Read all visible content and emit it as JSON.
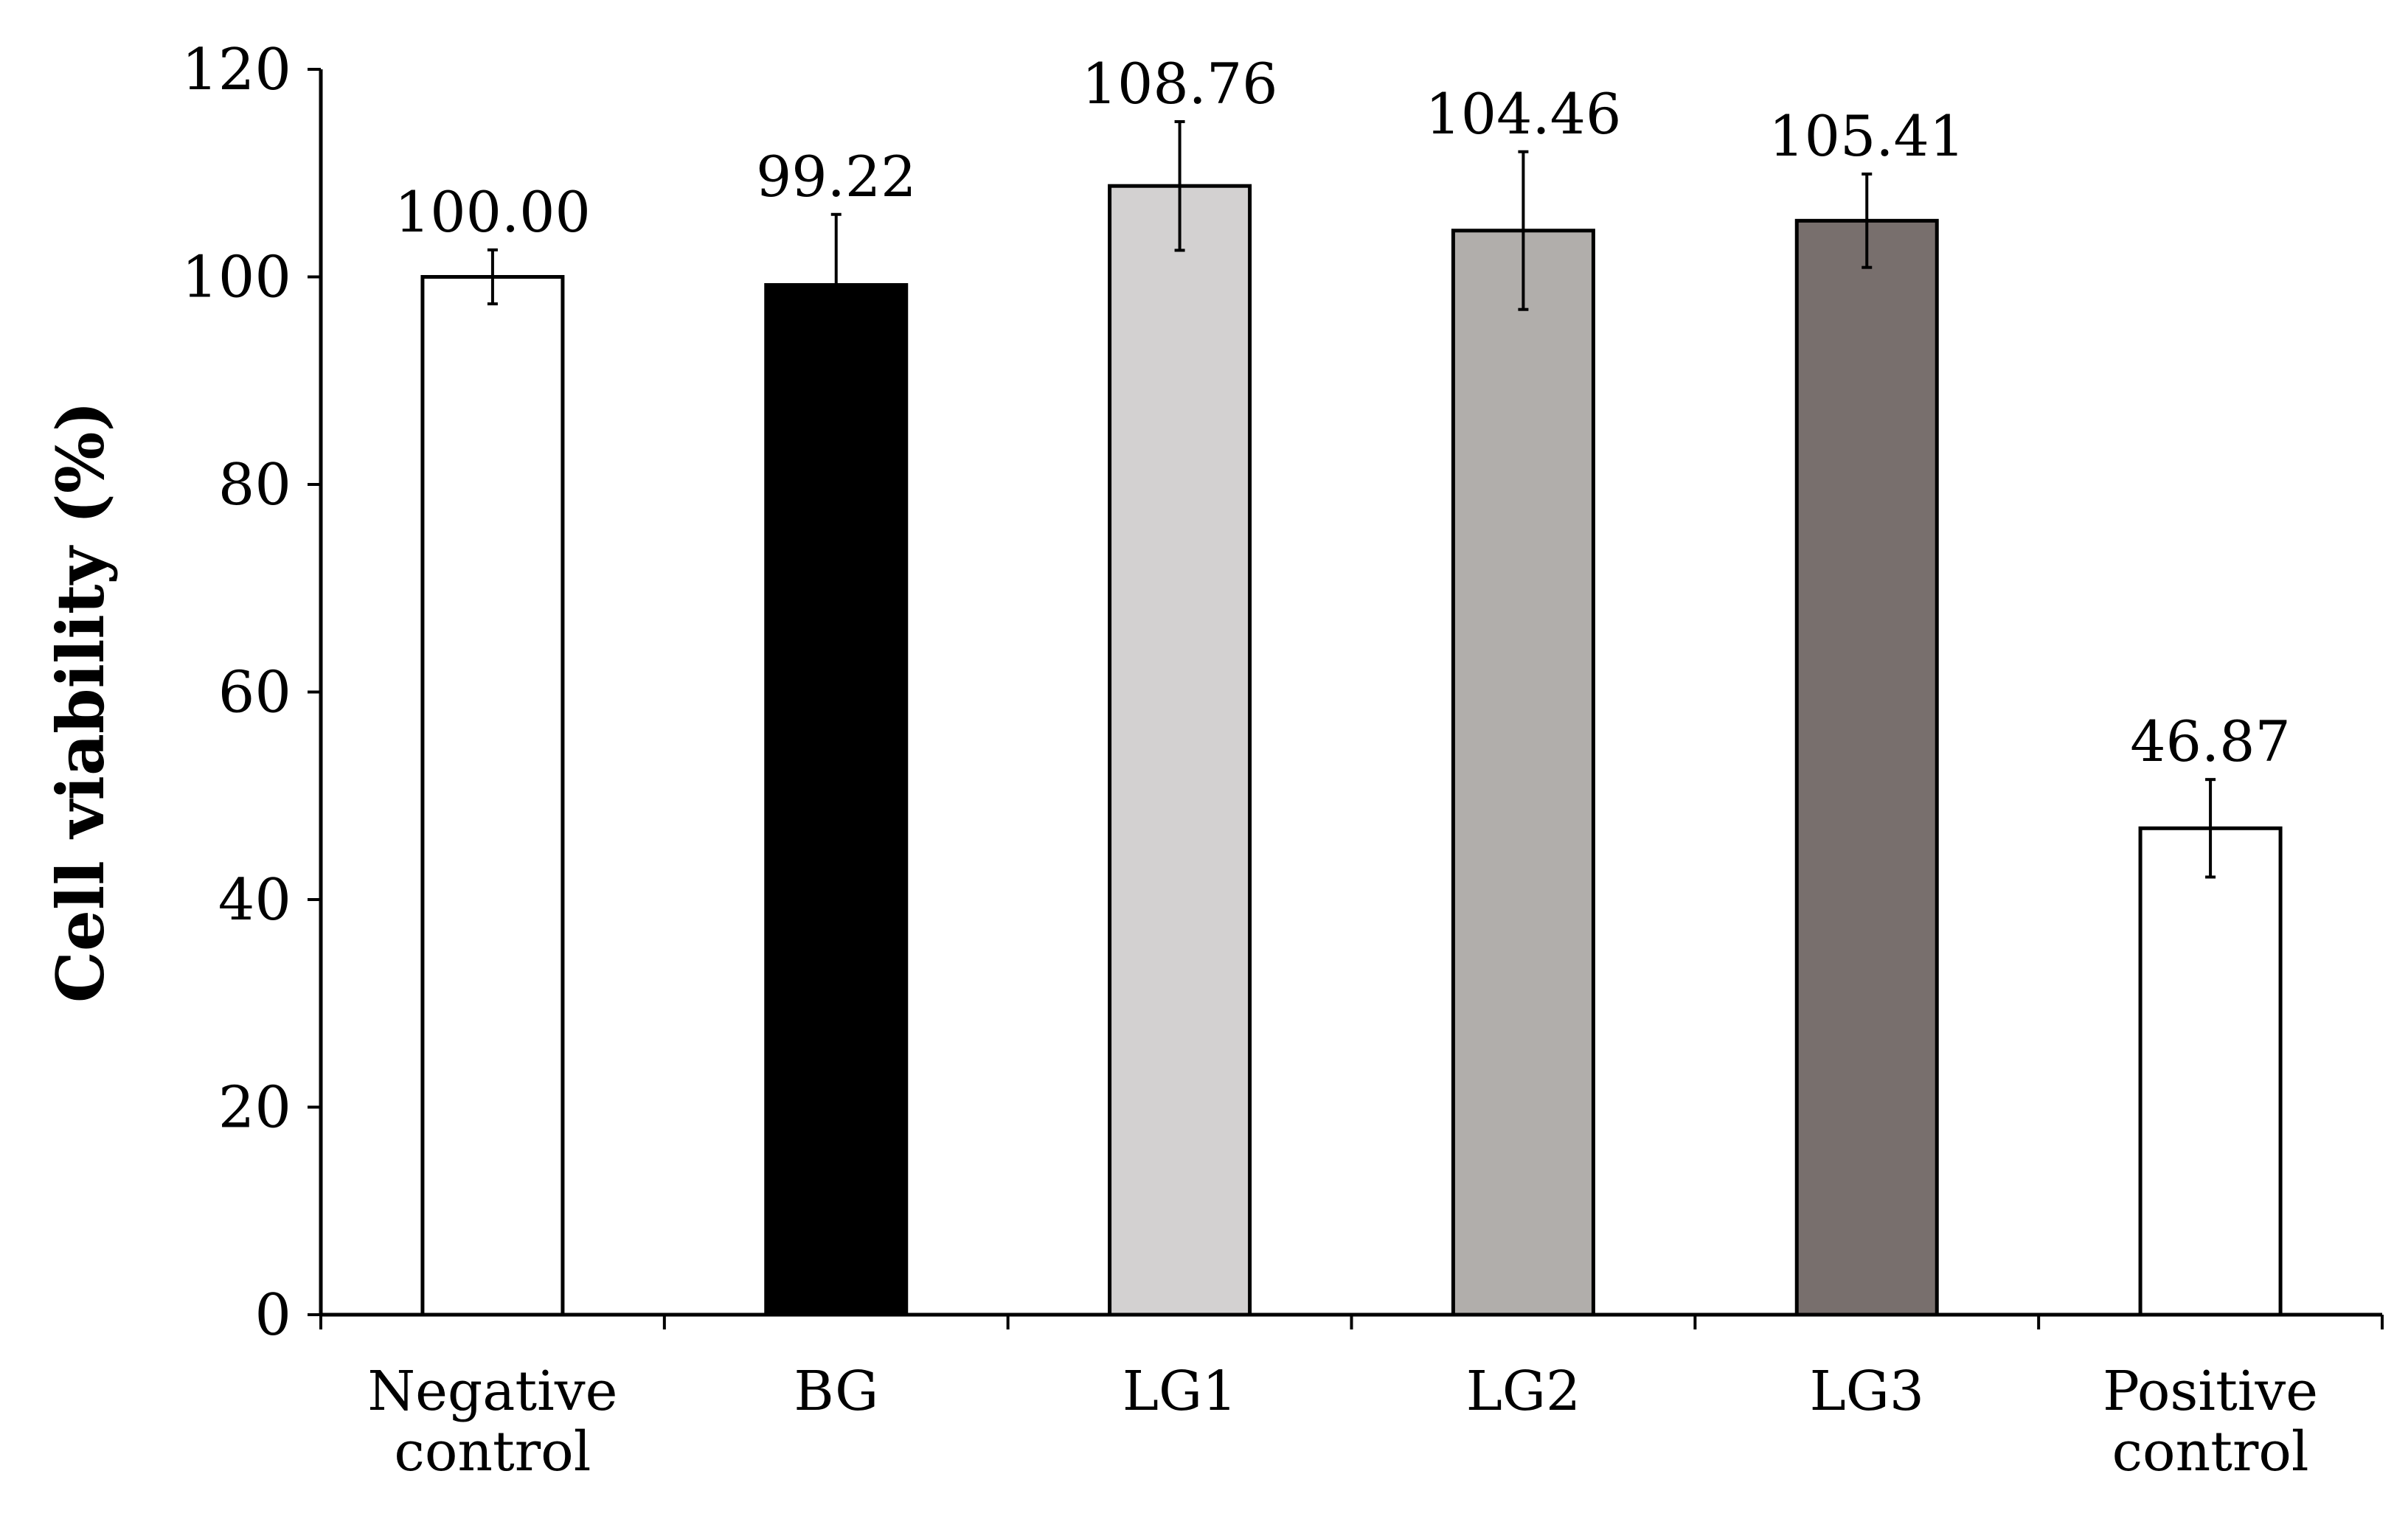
{
  "chart_data": {
    "type": "bar",
    "title": "",
    "xlabel": "",
    "ylabel": "Cell viability (%)",
    "ylim": [
      0,
      120
    ],
    "yticks": [
      0,
      20,
      40,
      60,
      80,
      100,
      120
    ],
    "grid": false,
    "legend": "none",
    "categories": [
      [
        "Negative",
        "control"
      ],
      [
        "BG"
      ],
      [
        "LG1"
      ],
      [
        "LG2"
      ],
      [
        "LG3"
      ],
      [
        "Positive",
        "control"
      ]
    ],
    "values": [
      100.0,
      99.22,
      108.76,
      104.46,
      105.41,
      46.87
    ],
    "value_labels": [
      "100.00",
      "99.22",
      "108.76",
      "104.46",
      "105.41",
      "46.87"
    ],
    "error": [
      2.6,
      6.8,
      6.2,
      7.6,
      4.5,
      4.7
    ],
    "colors": [
      "#ffffff",
      "#000000",
      "#d3d1d1",
      "#b1aeab",
      "#786f6d",
      "#ffffff"
    ]
  }
}
